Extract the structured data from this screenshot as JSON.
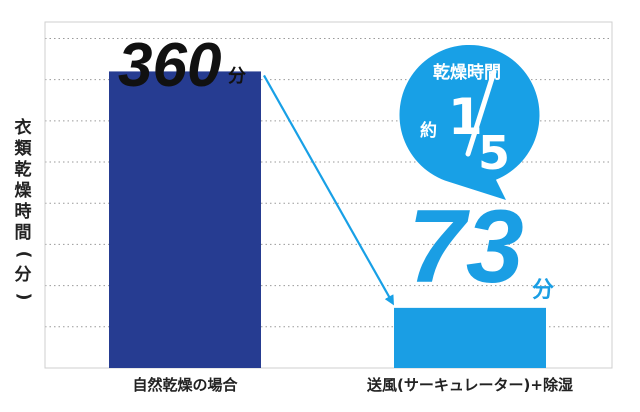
{
  "chart_data": {
    "type": "bar",
    "title": "",
    "ylabel": "衣類乾燥時間(分)",
    "categories": [
      "自然乾燥の場合",
      "送風(サーキュレーター)+除湿"
    ],
    "values": [
      360,
      73
    ],
    "value_labels": [
      "360",
      "73"
    ],
    "unit": "分",
    "ylim": [
      0,
      420
    ],
    "grid": true,
    "bar_colors": [
      "#263c91",
      "#1a9ee4"
    ],
    "callout": {
      "heading": "乾燥時間",
      "prefix": "約",
      "numerator": "1",
      "denominator": "5",
      "note_mark": "※",
      "color": "#18a0e6"
    }
  }
}
